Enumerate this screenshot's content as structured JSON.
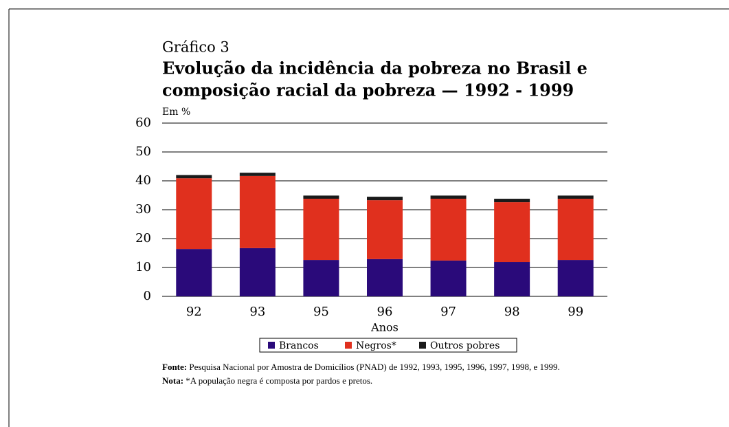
{
  "chart_data": {
    "type": "stacked_bar",
    "label": "Gráfico 3",
    "title_lines": [
      "Evolução da incidência da pobreza no Brasil e",
      "composição racial da pobreza — 1992 - 1999"
    ],
    "y_unit": "Em %",
    "x_label": "Anos",
    "categories": [
      "92",
      "93",
      "95",
      "96",
      "97",
      "98",
      "99"
    ],
    "series": [
      {
        "name": "Brancos",
        "color": "#2a0a7a",
        "values": [
          16.4,
          16.7,
          12.6,
          12.9,
          12.4,
          11.9,
          12.6
        ]
      },
      {
        "name": "Negros*",
        "color": "#e0301e",
        "values": [
          24.5,
          25.0,
          21.2,
          20.4,
          21.4,
          20.7,
          21.2
        ]
      },
      {
        "name": "Outros pobres",
        "color": "#1a1a1a",
        "values": [
          1.1,
          1.1,
          1.1,
          1.2,
          1.1,
          1.2,
          1.1
        ]
      }
    ],
    "ylim": [
      0,
      60
    ],
    "yticks": [
      0,
      10,
      20,
      30,
      40,
      50,
      60
    ],
    "grid": true,
    "source_label": "Fonte:",
    "source": "Pesquisa Nacional por Amostra de Domicílios (PNAD) de 1992, 1993, 1995, 1996, 1997, 1998, e 1999.",
    "note_label": "Nota:",
    "note": "*A população negra é composta por pardos e pretos."
  }
}
